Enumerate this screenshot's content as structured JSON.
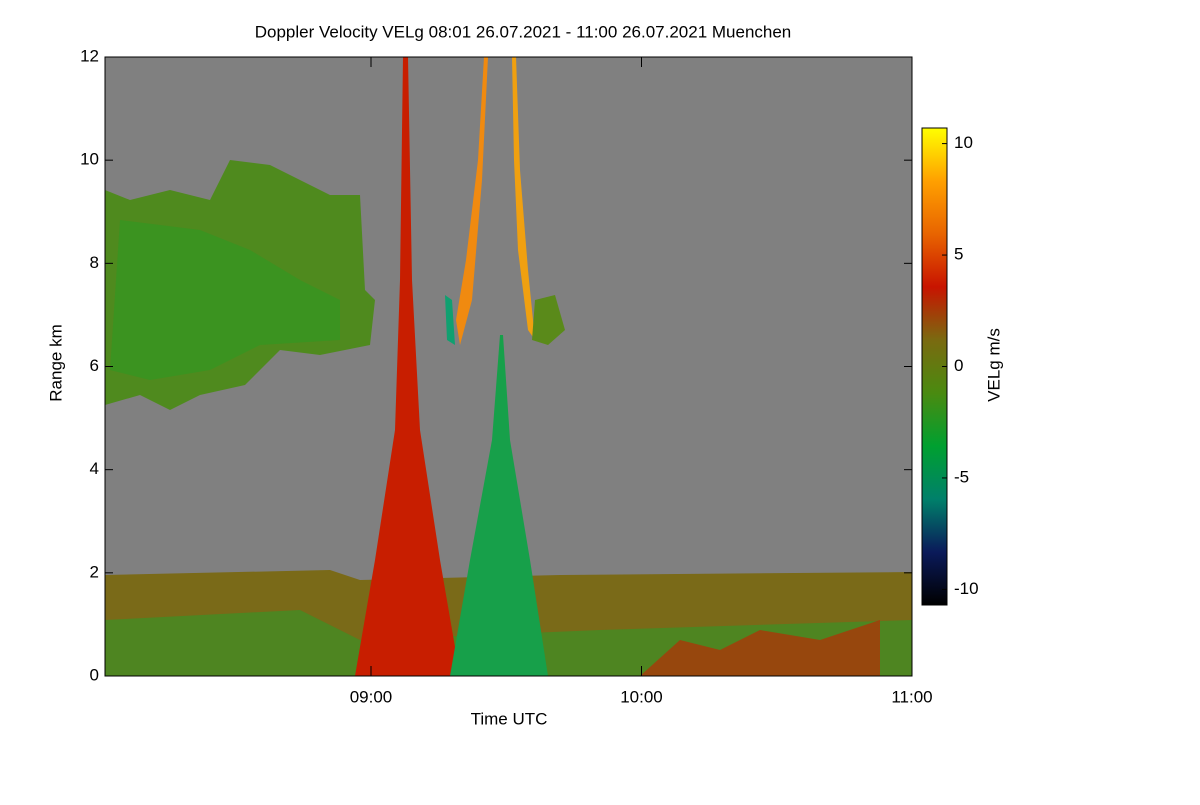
{
  "chart_data": {
    "type": "heatmap",
    "title": "Doppler Velocity VELg   08:01 26.07.2021 - 11:00 26.07.2021 Muenchen",
    "x_label": "Time UTC",
    "y_label": "Range km",
    "xlim": [
      481,
      660
    ],
    "xticks": [
      {
        "value": 540,
        "label": "09:00"
      },
      {
        "value": 600,
        "label": "10:00"
      },
      {
        "value": 660,
        "label": "11:00"
      }
    ],
    "ylim": [
      0,
      12
    ],
    "yticks": [
      0,
      2,
      4,
      6,
      8,
      10,
      12
    ],
    "colorbar": {
      "label": "VELg m/s",
      "clim": [
        -10.7,
        10.7
      ],
      "ticks": [
        -10,
        -5,
        0,
        5,
        10
      ],
      "colormap": [
        "#000000",
        "#0a1a5a",
        "#00806a",
        "#00a030",
        "#4a8a10",
        "#7a6a10",
        "#c81400",
        "#e86400",
        "#ffa000",
        "#ffff00"
      ]
    }
  }
}
